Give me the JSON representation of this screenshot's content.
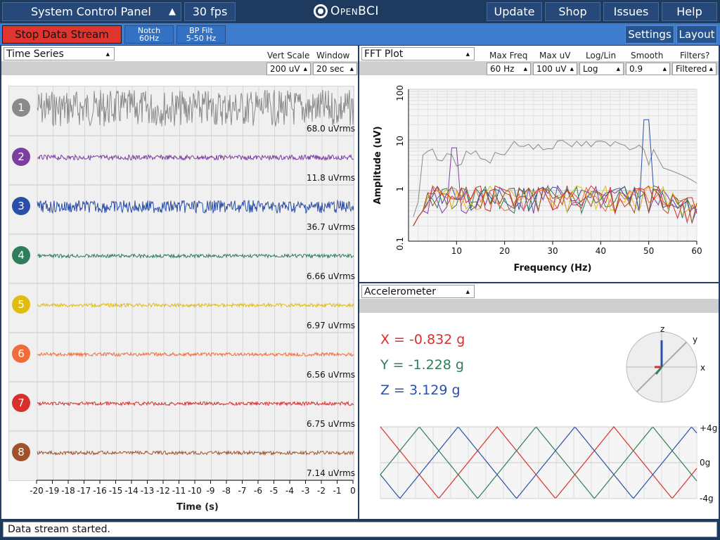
{
  "topbar": {
    "panel_name": "System Control Panel",
    "fps": "30 fps",
    "logo": "OpenBCI",
    "buttons": [
      "Update",
      "Shop",
      "Issues",
      "Help"
    ]
  },
  "controls": {
    "stop_stream": "Stop Data Stream",
    "notch_line1": "Notch",
    "notch_line2": "60Hz",
    "bp_line1": "BP Filt",
    "bp_line2": "5-50 Hz",
    "settings": "Settings",
    "layout": "Layout"
  },
  "time_series": {
    "title": "Time Series",
    "vert_scale_label": "Vert Scale",
    "vert_scale_value": "200 uV",
    "window_label": "Window",
    "window_value": "20 sec",
    "xlabel": "Time (s)",
    "x_ticks": [
      "-20",
      "-19",
      "-18",
      "-17",
      "-16",
      "-15",
      "-14",
      "-13",
      "-12",
      "-11",
      "-10",
      "-9",
      "-8",
      "-7",
      "-6",
      "-5",
      "-4",
      "-3",
      "-2",
      "-1",
      "0"
    ],
    "channels": [
      {
        "num": "1",
        "rms": "68.0 uVrms",
        "color": "#8a8a8a"
      },
      {
        "num": "2",
        "rms": "11.8 uVrms",
        "color": "#7b3fa0"
      },
      {
        "num": "3",
        "rms": "36.7 uVrms",
        "color": "#2b4fa8"
      },
      {
        "num": "4",
        "rms": "6.66 uVrms",
        "color": "#2f7d5a"
      },
      {
        "num": "5",
        "rms": "6.97 uVrms",
        "color": "#e0bb10"
      },
      {
        "num": "6",
        "rms": "6.56 uVrms",
        "color": "#f26b3a"
      },
      {
        "num": "7",
        "rms": "6.75 uVrms",
        "color": "#d8302c"
      },
      {
        "num": "8",
        "rms": "7.14 uVrms",
        "color": "#a0522d"
      }
    ]
  },
  "fft": {
    "title": "FFT Plot",
    "max_freq_label": "Max Freq",
    "max_freq_value": "60 Hz",
    "max_uv_label": "Max uV",
    "max_uv_value": "100 uV",
    "loglin_label": "Log/Lin",
    "loglin_value": "Log",
    "smooth_label": "Smooth",
    "smooth_value": "0.9",
    "filters_label": "Filters?",
    "filters_value": "Filtered",
    "xlabel": "Frequency (Hz)",
    "ylabel": "Amplitude (uV)",
    "x_ticks": [
      "10",
      "20",
      "30",
      "40",
      "50",
      "60"
    ],
    "y_ticks": [
      "100",
      "10",
      "1",
      "0.1"
    ]
  },
  "accelerometer": {
    "title": "Accelerometer",
    "x_text": "X = -0.832 g",
    "y_text": "Y = -1.228 g",
    "z_text": "Z = 3.129 g",
    "x_color": "#d8302c",
    "y_color": "#2f7d5a",
    "z_color": "#2b4fa8",
    "axis_x": "x",
    "axis_y": "y",
    "axis_z": "z",
    "plot_labels": [
      "+4g",
      "0g",
      "-4g"
    ]
  },
  "status": {
    "message": "Data stream started."
  },
  "icons": {
    "panel_menu": "triangle-up-icon",
    "dropdown": "caret-icon",
    "logo": "openbci-logo-icon"
  }
}
